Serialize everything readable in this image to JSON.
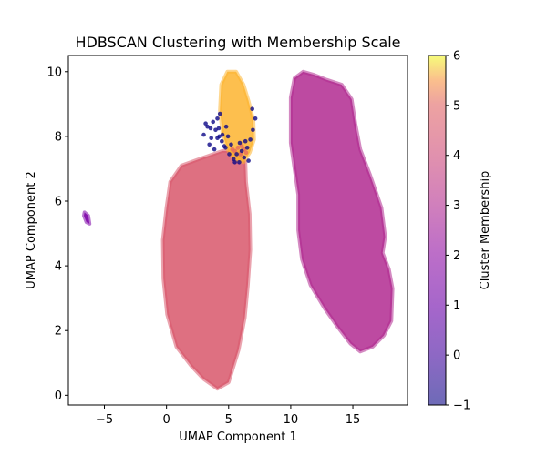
{
  "chart_data": {
    "type": "scatter",
    "title": "HDBSCAN Clustering with Membership Scale",
    "xlabel": "UMAP Component 1",
    "ylabel": "UMAP Component 2",
    "xlim": [
      -7.9,
      19.4
    ],
    "ylim": [
      -0.3,
      10.5
    ],
    "xticks": [
      -5,
      0,
      5,
      10,
      15
    ],
    "yticks": [
      0,
      2,
      4,
      6,
      8,
      10
    ],
    "grid": false,
    "colorbar": {
      "label": "Cluster Membership",
      "range": [
        -1,
        6
      ],
      "ticks": [
        -1,
        0,
        1,
        2,
        3,
        4,
        5,
        6
      ],
      "colormap": "plasma",
      "alpha": 0.6
    },
    "clusters": [
      {
        "label": 0,
        "color": "#7e03a8",
        "outline": [
          [
            -6.6,
            5.65
          ],
          [
            -6.3,
            5.55
          ],
          [
            -6.2,
            5.3
          ],
          [
            -6.45,
            5.35
          ],
          [
            -6.65,
            5.55
          ]
        ]
      },
      {
        "label": 3,
        "color": "#d8576b",
        "outline": [
          [
            3.0,
            7.35
          ],
          [
            4.5,
            7.55
          ],
          [
            5.9,
            7.55
          ],
          [
            6.35,
            7.2
          ],
          [
            6.4,
            6.6
          ],
          [
            6.7,
            5.6
          ],
          [
            6.75,
            4.5
          ],
          [
            6.55,
            3.4
          ],
          [
            6.3,
            2.4
          ],
          [
            5.8,
            1.4
          ],
          [
            5.0,
            0.4
          ],
          [
            4.1,
            0.2
          ],
          [
            3.0,
            0.5
          ],
          [
            2.0,
            0.9
          ],
          [
            0.8,
            1.5
          ],
          [
            0.05,
            2.5
          ],
          [
            -0.25,
            3.6
          ],
          [
            -0.3,
            4.8
          ],
          [
            0.0,
            5.8
          ],
          [
            0.3,
            6.6
          ],
          [
            1.2,
            7.1
          ]
        ]
      },
      {
        "label": 5,
        "color": "#fdb42f",
        "outline": [
          [
            4.4,
            9.6
          ],
          [
            4.9,
            10.0
          ],
          [
            5.6,
            10.0
          ],
          [
            6.2,
            9.6
          ],
          [
            6.6,
            9.1
          ],
          [
            7.0,
            8.5
          ],
          [
            7.05,
            7.9
          ],
          [
            6.7,
            7.5
          ],
          [
            6.2,
            7.2
          ],
          [
            5.4,
            7.3
          ],
          [
            4.9,
            7.6
          ],
          [
            4.5,
            8.1
          ],
          [
            4.3,
            8.8
          ]
        ]
      },
      {
        "label": 2,
        "color": "#b12a90",
        "outline": [
          [
            10.0,
            9.2
          ],
          [
            10.3,
            9.8
          ],
          [
            11.0,
            10.0
          ],
          [
            11.9,
            9.9
          ],
          [
            12.9,
            9.75
          ],
          [
            14.1,
            9.6
          ],
          [
            14.9,
            9.15
          ],
          [
            15.2,
            8.4
          ],
          [
            15.6,
            7.6
          ],
          [
            16.4,
            6.8
          ],
          [
            17.3,
            5.8
          ],
          [
            17.6,
            4.9
          ],
          [
            17.4,
            4.4
          ],
          [
            17.9,
            3.9
          ],
          [
            18.2,
            3.3
          ],
          [
            18.1,
            2.3
          ],
          [
            17.5,
            1.85
          ],
          [
            16.6,
            1.5
          ],
          [
            15.6,
            1.35
          ],
          [
            14.8,
            1.6
          ],
          [
            13.8,
            2.1
          ],
          [
            12.7,
            2.7
          ],
          [
            11.6,
            3.4
          ],
          [
            10.9,
            4.2
          ],
          [
            10.6,
            5.1
          ],
          [
            10.6,
            6.2
          ],
          [
            10.3,
            7.0
          ],
          [
            10.0,
            7.8
          ],
          [
            10.0,
            8.6
          ]
        ]
      }
    ],
    "noise_points": {
      "label": -1,
      "color": "#0d0887",
      "points": [
        [
          4.1,
          8.55
        ],
        [
          4.3,
          8.7
        ],
        [
          4.2,
          8.25
        ],
        [
          3.0,
          8.05
        ],
        [
          3.15,
          8.4
        ],
        [
          3.45,
          7.75
        ],
        [
          3.6,
          7.95
        ],
        [
          3.85,
          7.6
        ],
        [
          4.1,
          7.95
        ],
        [
          4.45,
          7.85
        ],
        [
          4.75,
          7.65
        ],
        [
          5.05,
          7.45
        ],
        [
          5.2,
          7.75
        ],
        [
          5.4,
          7.3
        ],
        [
          5.65,
          7.45
        ],
        [
          5.85,
          7.2
        ],
        [
          6.05,
          7.55
        ],
        [
          6.25,
          7.35
        ],
        [
          6.5,
          7.65
        ],
        [
          6.75,
          7.9
        ],
        [
          6.95,
          8.2
        ],
        [
          7.15,
          8.55
        ],
        [
          6.9,
          8.85
        ],
        [
          4.5,
          8.05
        ],
        [
          4.8,
          8.3
        ],
        [
          3.3,
          8.3
        ],
        [
          3.75,
          8.45
        ],
        [
          6.35,
          7.85
        ],
        [
          5.9,
          7.8
        ],
        [
          4.95,
          8.0
        ],
        [
          3.95,
          8.2
        ],
        [
          3.55,
          8.25
        ],
        [
          4.25,
          8.0
        ],
        [
          4.65,
          7.7
        ],
        [
          6.6,
          7.25
        ],
        [
          5.5,
          7.2
        ]
      ]
    },
    "border_points": {
      "color": "#e66c5c",
      "points": [
        [
          5.5,
          7.55
        ],
        [
          5.75,
          7.65
        ],
        [
          6.05,
          7.7
        ],
        [
          5.95,
          7.45
        ],
        [
          6.25,
          7.6
        ],
        [
          5.3,
          7.6
        ],
        [
          6.4,
          7.5
        ]
      ]
    }
  }
}
